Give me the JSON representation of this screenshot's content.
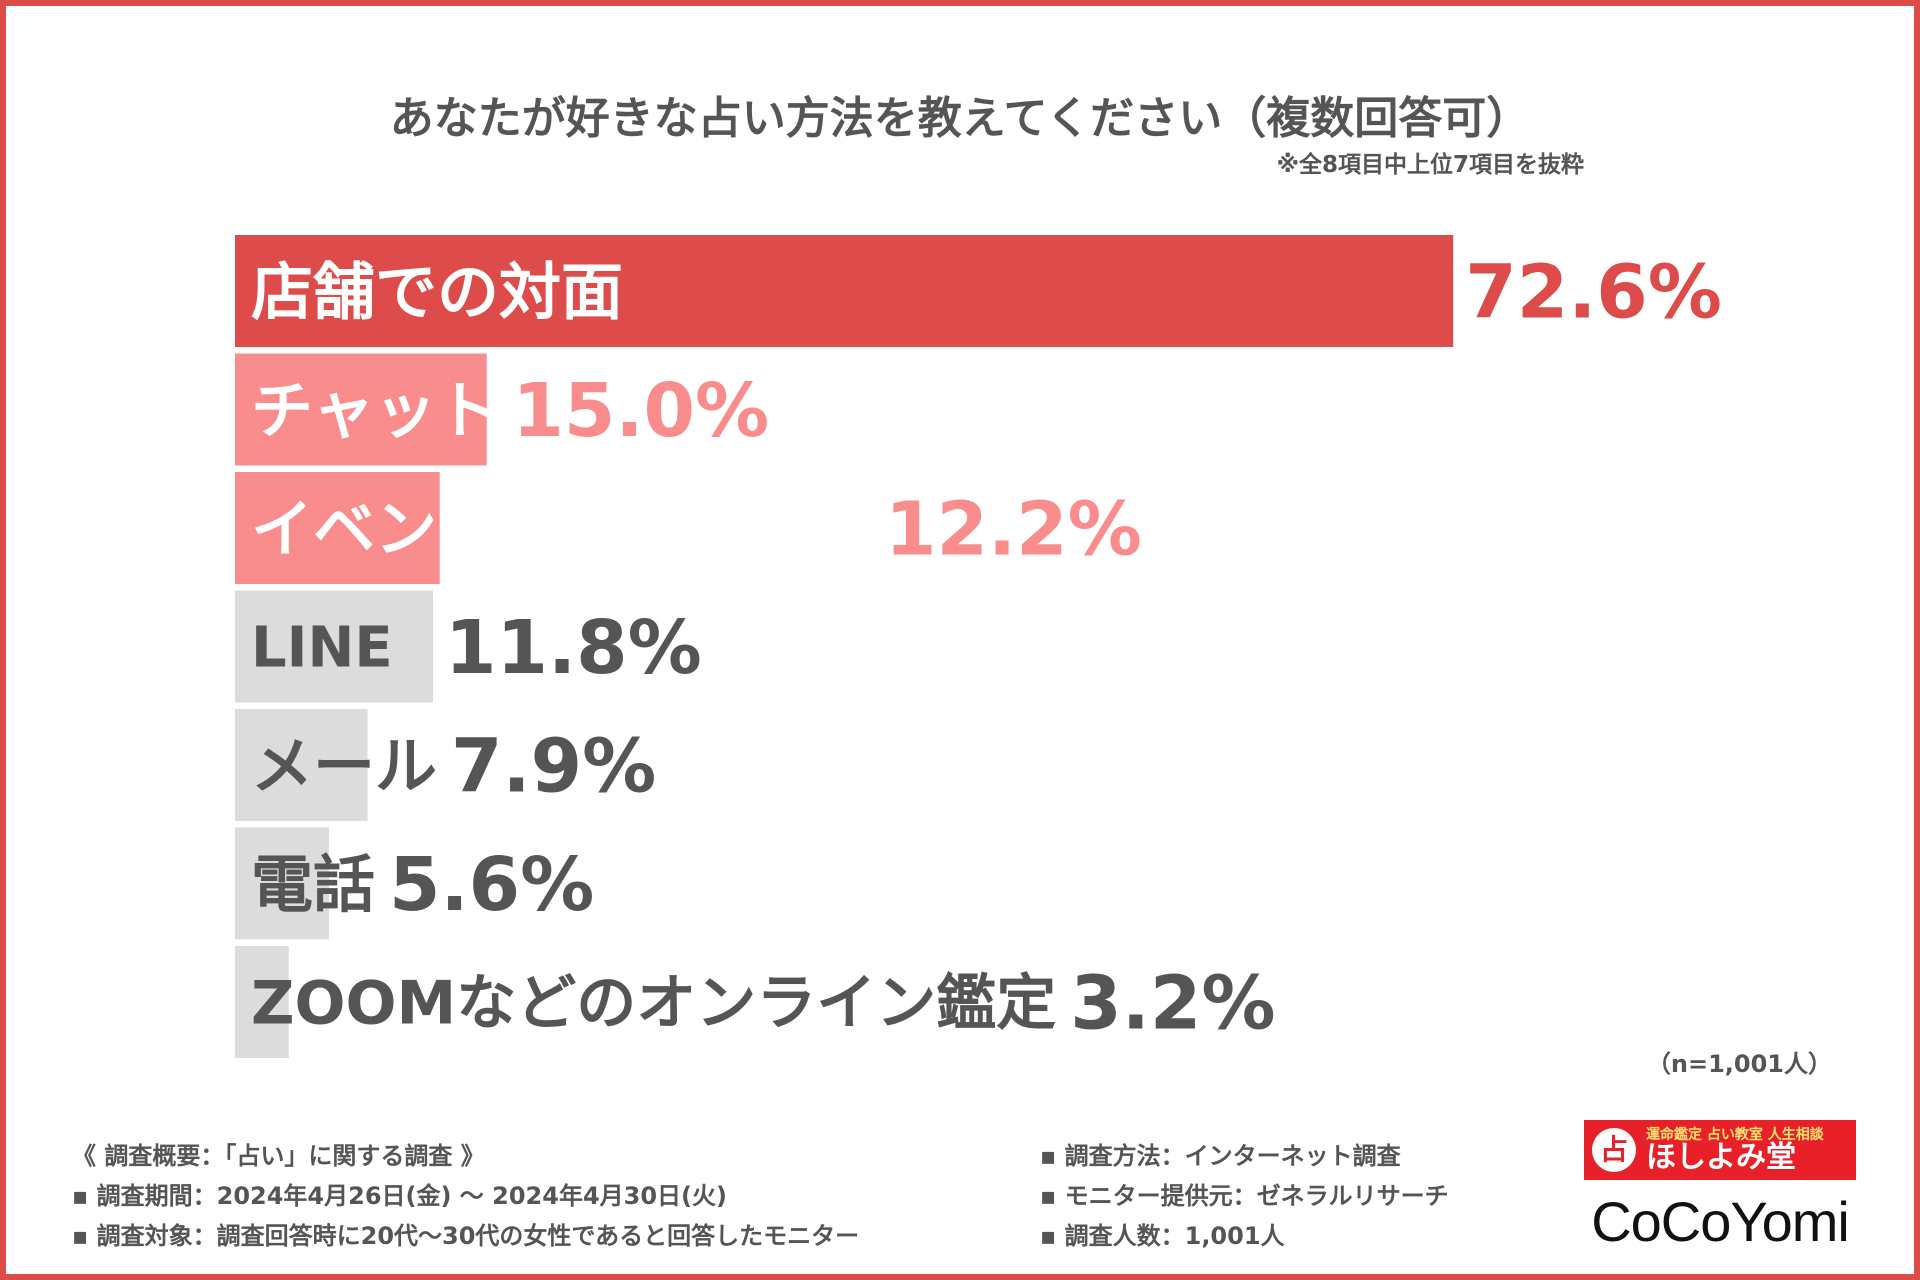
{
  "chart_data": {
    "type": "bar",
    "title": "あなたが好きな占い方法を教えてください（複数回答可）",
    "note": "※全8項目中上位7項目を抜粋",
    "categories": [
      "店舗での対面",
      "チャット",
      "イベント会場での対面",
      "LINE",
      "メール",
      "電話",
      "ZOOMなどのオンライン鑑定"
    ],
    "values": [
      72.6,
      15.0,
      12.2,
      11.8,
      7.9,
      5.6,
      3.2
    ],
    "value_labels": [
      "72.6%",
      "15.0%",
      "12.2%",
      "11.8%",
      "7.9%",
      "5.6%",
      "3.2%"
    ],
    "unit": "%",
    "xlim": [
      0,
      100
    ],
    "orientation": "horizontal",
    "colors": [
      "#dd4b4b",
      "#f98d8d",
      "#f98d8d",
      "#dcdcdc",
      "#dcdcdc",
      "#dcdcdc",
      "#dcdcdc"
    ],
    "label_colors": [
      "#ffffff",
      "#ffffff",
      "#ffffff",
      "#555555",
      "#555555",
      "#555555",
      "#555555"
    ],
    "value_colors": [
      "#dd4b4b",
      "#f98d8d",
      "#f98d8d",
      "#555555",
      "#555555",
      "#555555",
      "#555555"
    ],
    "sample_size": "（n=1,001人）"
  },
  "footer": {
    "left": [
      "《 調査概要：「占い」に関する調査 》",
      "▪ 調査期間：2024年4月26日(金) 〜 2024年4月30日(火)",
      "▪ 調査対象：調査回答時に20代〜30代の女性であると回答したモニター"
    ],
    "right": [
      "▪ 調査方法：インターネット調査",
      "▪ モニター提供元：ゼネラルリサーチ",
      "▪ 調査人数：1,001人"
    ]
  },
  "logos": {
    "badge": "占",
    "tagline": "運命鑑定 占い教室 人生相談",
    "brand": "ほしよみ堂",
    "brand_color": "#e8202a",
    "site": "CoCoYomi"
  }
}
